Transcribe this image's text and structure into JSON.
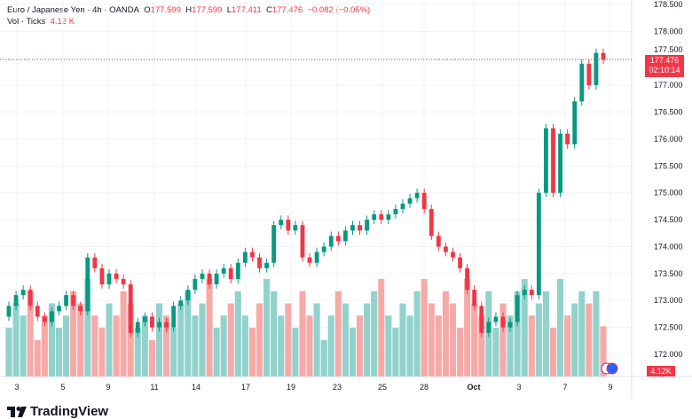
{
  "header": {
    "symbol": "Euro / Japanese Yen · 4h · OANDA",
    "o_label": "O",
    "o": "177.599",
    "h_label": "H",
    "h": "177.599",
    "l_label": "L",
    "l": "177.411",
    "c_label": "C",
    "c": "177.476",
    "change": "−0.082 (−0.05%)",
    "vol_label": "Vol · Ticks",
    "vol": "4.12 K"
  },
  "price_tag": {
    "price": "177.476",
    "countdown": "02:10:14"
  },
  "vol_tag": "4.12K",
  "logo": "TradingView",
  "colors": {
    "up": "#089981",
    "down": "#f23645",
    "vol_up": "#92d2cc",
    "vol_down": "#f7a9a7"
  },
  "chart_data": {
    "type": "candlestick",
    "title": "Euro / Japanese Yen · 4h · OANDA",
    "ylim": [
      171.85,
      178.55
    ],
    "y_ticks": [
      "178.500",
      "178.000",
      "177.500",
      "177.000",
      "176.500",
      "176.000",
      "175.500",
      "175.000",
      "174.500",
      "174.000",
      "173.500",
      "173.000",
      "172.500",
      "172.000"
    ],
    "x_ticks": [
      "3",
      "5",
      "9",
      "11",
      "14",
      "17",
      "19",
      "23",
      "25",
      "28",
      "Oct",
      "3",
      "7",
      "9"
    ],
    "first_open": 172.7,
    "closes": [
      172.9,
      173.1,
      173.2,
      172.9,
      172.7,
      172.6,
      172.8,
      172.9,
      173.1,
      172.9,
      172.8,
      173.8,
      173.6,
      173.3,
      173.5,
      173.4,
      173.3,
      172.4,
      172.6,
      172.7,
      172.5,
      172.6,
      172.5,
      172.9,
      173.0,
      173.2,
      173.4,
      173.5,
      173.3,
      173.5,
      173.6,
      173.4,
      173.7,
      173.9,
      173.8,
      173.6,
      173.7,
      174.4,
      174.5,
      174.3,
      174.4,
      173.8,
      173.7,
      173.9,
      174.0,
      174.2,
      174.1,
      174.3,
      174.4,
      174.3,
      174.5,
      174.6,
      174.5,
      174.6,
      174.7,
      174.8,
      174.9,
      175.0,
      174.7,
      174.2,
      174.0,
      173.9,
      173.8,
      173.6,
      173.2,
      172.9,
      172.4,
      172.6,
      172.7,
      172.5,
      172.6,
      173.1,
      173.2,
      173.1,
      175.0,
      176.2,
      175.0,
      176.1,
      175.9,
      176.7,
      177.4,
      177.0,
      177.599,
      177.476
    ],
    "volume_k": [
      4,
      6,
      5,
      7,
      3,
      5,
      6,
      4,
      5,
      7,
      6,
      8,
      5,
      4,
      6,
      5,
      7,
      6,
      4,
      5,
      3,
      6,
      5,
      4,
      6,
      7,
      5,
      6,
      8,
      4,
      5,
      6,
      7,
      5,
      4,
      6,
      8,
      7,
      5,
      6,
      4,
      7,
      5,
      6,
      3,
      5,
      7,
      6,
      4,
      5,
      6,
      7,
      8,
      5,
      4,
      6,
      5,
      7,
      8,
      6,
      5,
      7,
      6,
      4,
      8,
      6,
      5,
      7,
      4,
      6,
      5,
      7,
      8,
      5,
      6,
      7,
      4,
      8,
      5,
      6,
      7,
      6,
      7,
      4.12
    ]
  }
}
